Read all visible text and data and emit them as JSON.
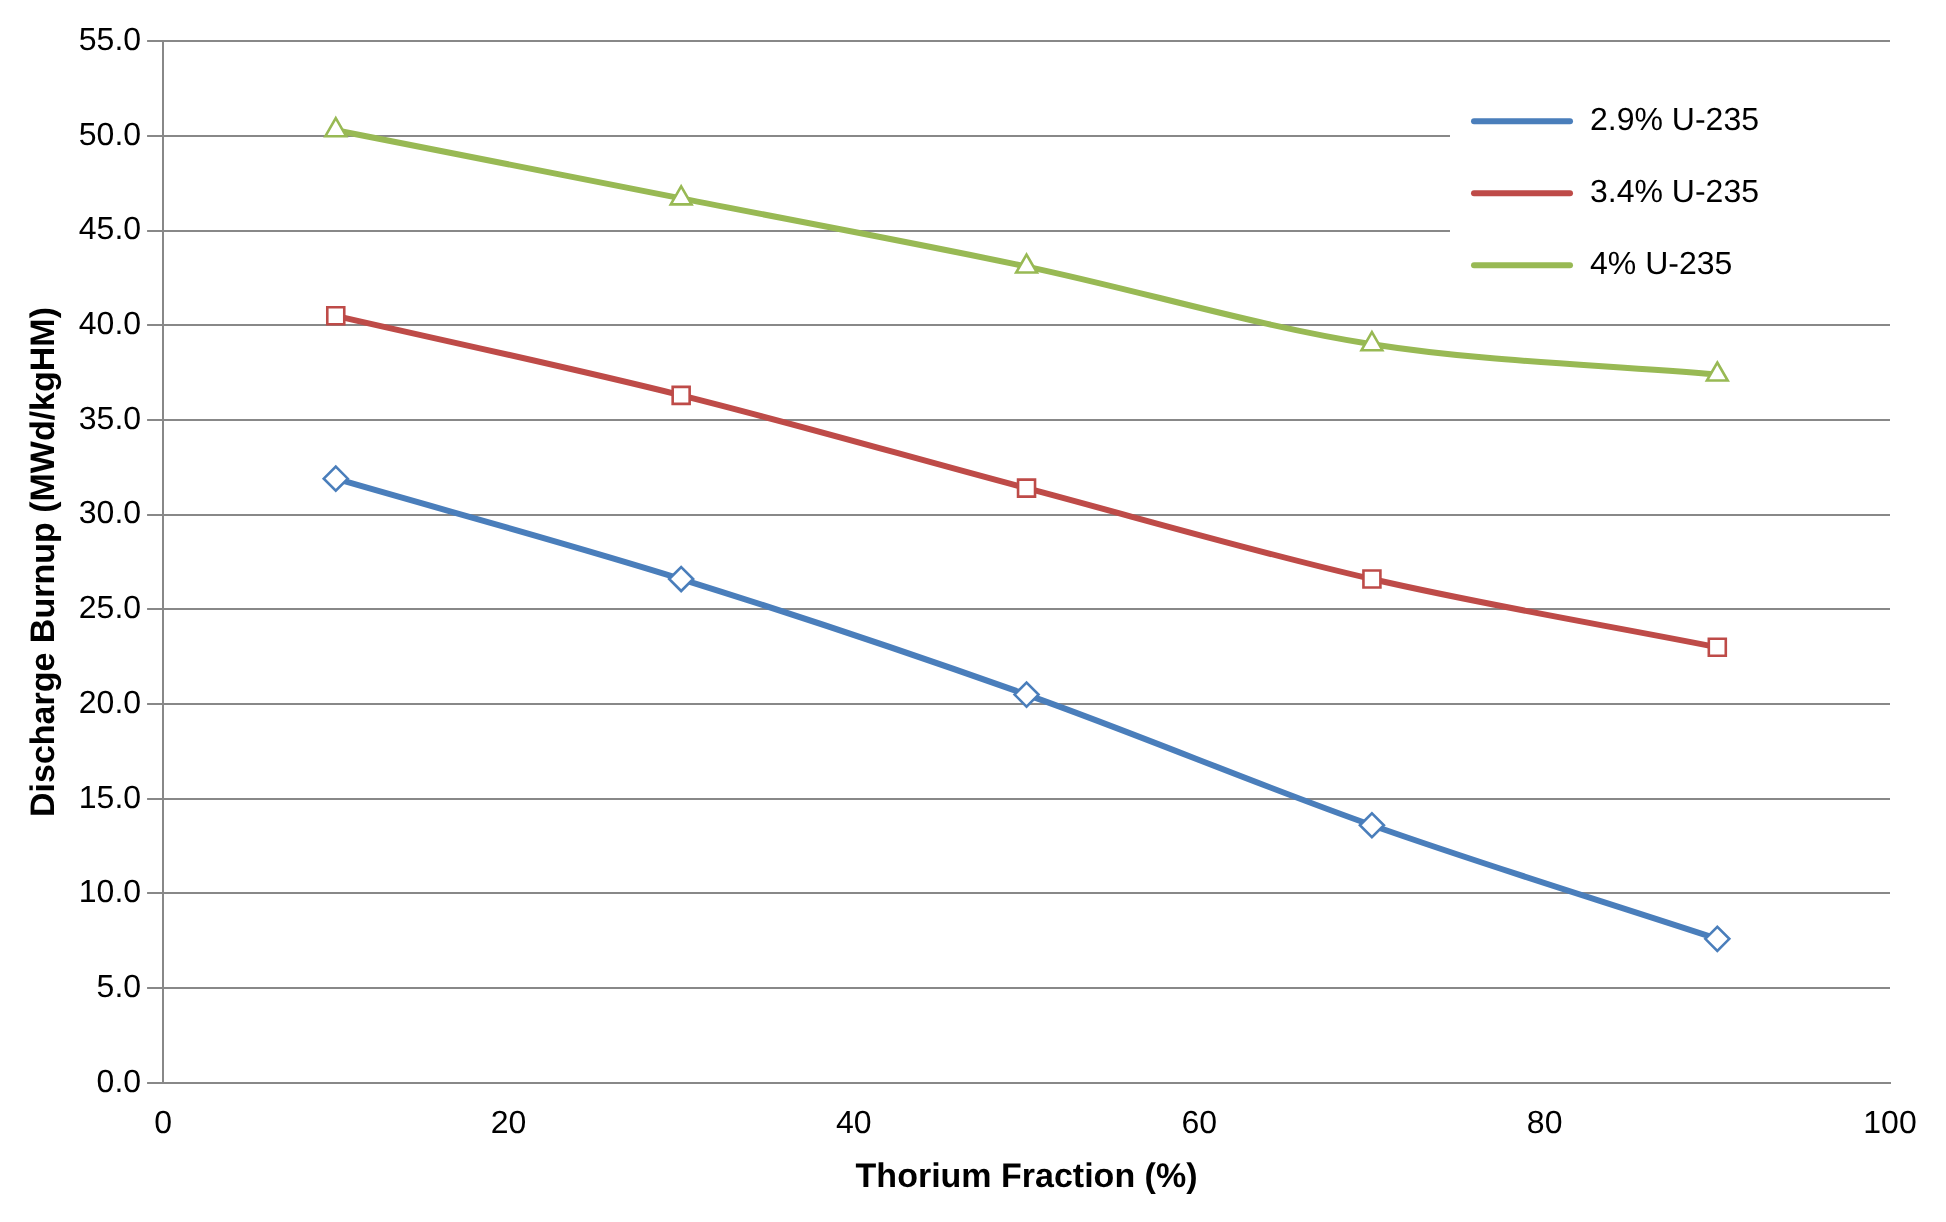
{
  "chart_data": {
    "type": "line",
    "xlabel": "Thorium Fraction (%)",
    "ylabel": "Discharge Burnup (MWd/kgHM)",
    "x": [
      10,
      30,
      50,
      70,
      90
    ],
    "series": [
      {
        "name": "2.9% U-235",
        "color": "#4a7ebb",
        "marker": "diamond",
        "values": [
          31.9,
          26.6,
          20.5,
          13.6,
          7.6
        ]
      },
      {
        "name": "3.4% U-235",
        "color": "#be4b48",
        "marker": "square",
        "values": [
          40.5,
          36.3,
          31.4,
          26.6,
          23.0
        ]
      },
      {
        "name": "4% U-235",
        "color": "#98b954",
        "marker": "triangle",
        "values": [
          50.3,
          46.7,
          43.1,
          39.0,
          37.4
        ]
      }
    ],
    "xlim": [
      0,
      100
    ],
    "xticks": [
      0,
      20,
      40,
      60,
      80,
      100
    ],
    "ylim": [
      0,
      55
    ],
    "yticks": [
      {
        "value": 0,
        "label": "0.0"
      },
      {
        "value": 5,
        "label": "5.0"
      },
      {
        "value": 10,
        "label": "10.0"
      },
      {
        "value": 15,
        "label": "15.0"
      },
      {
        "value": 20,
        "label": "20.0"
      },
      {
        "value": 25,
        "label": "25.0"
      },
      {
        "value": 30,
        "label": "30.0"
      },
      {
        "value": 35,
        "label": "35.0"
      },
      {
        "value": 40,
        "label": "40.0"
      },
      {
        "value": 45,
        "label": "45.0"
      },
      {
        "value": 50,
        "label": "50.0"
      },
      {
        "value": 55,
        "label": "55.0"
      }
    ],
    "grid": "y",
    "legend": "top right",
    "line_style": "solid"
  }
}
